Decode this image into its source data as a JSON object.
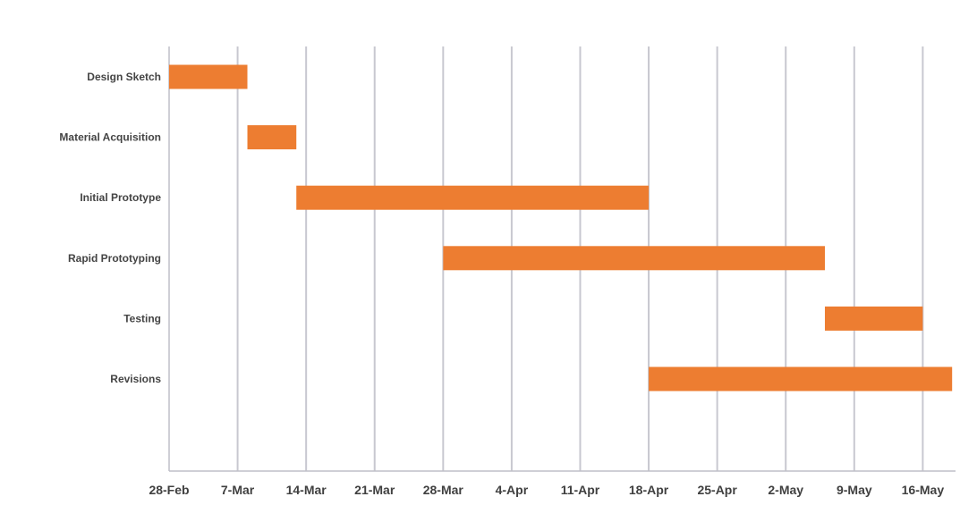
{
  "chart_data": {
    "type": "bar",
    "orientation": "horizontal",
    "subtype": "gantt",
    "title": "",
    "xlabel": "",
    "ylabel": "",
    "x_ticks": [
      "28-Feb",
      "7-Mar",
      "14-Mar",
      "21-Mar",
      "28-Mar",
      "4-Apr",
      "11-Apr",
      "18-Apr",
      "25-Apr",
      "2-May",
      "9-May",
      "16-May"
    ],
    "xlim": [
      "28-Feb",
      "19-May"
    ],
    "grid": true,
    "legend": "none",
    "bar_color": "#ED7D31",
    "grid_color": "#C8C8D0",
    "categories": [
      "Design Sketch",
      "Material Acquisition",
      "Initial Prototype",
      "Rapid Prototyping",
      "Testing",
      "Revisions"
    ],
    "tasks": [
      {
        "name": "Design Sketch",
        "start": "28-Feb",
        "end": "8-Mar"
      },
      {
        "name": "Material Acquisition",
        "start": "8-Mar",
        "end": "13-Mar"
      },
      {
        "name": "Initial Prototype",
        "start": "13-Mar",
        "end": "18-Apr"
      },
      {
        "name": "Rapid Prototyping",
        "start": "28-Mar",
        "end": "6-May"
      },
      {
        "name": "Testing",
        "start": "6-May",
        "end": "16-May"
      },
      {
        "name": "Revisions",
        "start": "18-Apr",
        "end": "19-May"
      }
    ]
  }
}
